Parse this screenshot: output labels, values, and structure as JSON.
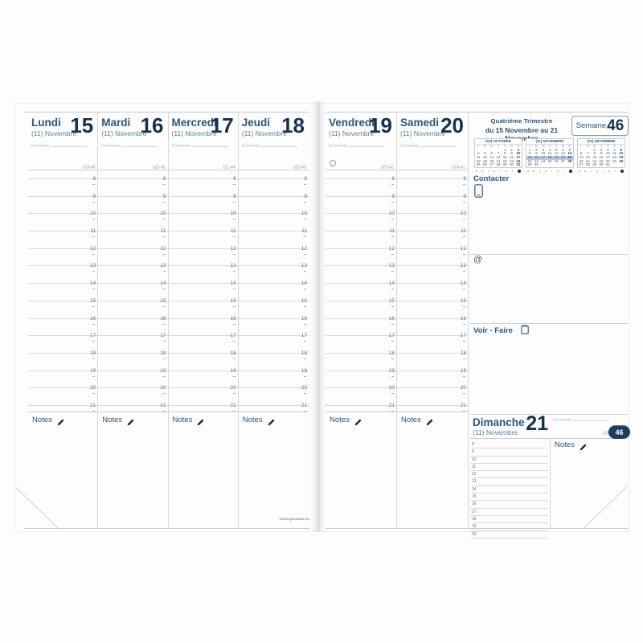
{
  "planner": {
    "website": "www.quovadis.eu",
    "week": {
      "label": "Semaine",
      "number": "46",
      "tab": "46",
      "quarter": "Quatrième Trimestre",
      "range": "du 15 Novembre au 21 Novembre"
    },
    "labels": {
      "notes": "Notes",
      "contacter": "Contacter",
      "at_symbol": "@",
      "voir_faire": "Voir - Faire",
      "dominante": "Dominante"
    },
    "days": [
      {
        "name": "Lundi",
        "date": "15",
        "month": "(11) Novembre",
        "daynum": "319-46"
      },
      {
        "name": "Mardi",
        "date": "16",
        "month": "(11) Novembre",
        "daynum": "320-45"
      },
      {
        "name": "Mercredi",
        "date": "17",
        "month": "(11) Novembre",
        "daynum": "321-44"
      },
      {
        "name": "Jeudi",
        "date": "18",
        "month": "(11) Novembre",
        "daynum": "322-43"
      },
      {
        "name": "Vendredi",
        "date": "19",
        "month": "(11) Novembre",
        "daynum": "323-42",
        "moon_phase": "full-moon"
      },
      {
        "name": "Samedi",
        "date": "20",
        "month": "(11) Novembre",
        "daynum": "324-41"
      }
    ],
    "sunday": {
      "name": "Dimanche",
      "date": "21",
      "month": "(11) Novembre",
      "daynum": "325-40"
    },
    "hours": [
      8,
      9,
      10,
      11,
      12,
      13,
      14,
      15,
      16,
      17,
      18,
      19,
      20,
      21
    ],
    "sunday_hours": [
      8,
      9,
      10,
      11,
      12,
      13,
      14,
      15,
      16,
      17,
      18,
      19,
      20
    ],
    "mini_dow": [
      "L",
      "M",
      "M",
      "J",
      "V",
      "S",
      "D"
    ],
    "mini_calendars": [
      {
        "title": "(10) OCTOBRE",
        "highlight_row": -1,
        "weeks": [
          [
            "",
            "",
            "",
            "",
            "1",
            "2",
            "3"
          ],
          [
            "4",
            "5",
            "6",
            "7",
            "8",
            "9",
            "10"
          ],
          [
            "11",
            "12",
            "13",
            "14",
            "15",
            "16",
            "17"
          ],
          [
            "18",
            "19",
            "20",
            "21",
            "22",
            "23",
            "24"
          ],
          [
            "25",
            "26",
            "27",
            "28",
            "29",
            "30",
            "31"
          ]
        ]
      },
      {
        "title": "(11) NOVEMBRE",
        "highlight_row": 2,
        "weeks": [
          [
            "1",
            "2",
            "3",
            "4",
            "5",
            "6",
            "7"
          ],
          [
            "8",
            "9",
            "10",
            "11",
            "12",
            "13",
            "14"
          ],
          [
            "15",
            "16",
            "17",
            "18",
            "19",
            "20",
            "21"
          ],
          [
            "22",
            "23",
            "24",
            "25",
            "26",
            "27",
            "28"
          ],
          [
            "29",
            "30",
            "",
            "",
            "",
            "",
            ""
          ]
        ]
      },
      {
        "title": "(12) DÉCEMBRE",
        "highlight_row": -1,
        "weeks": [
          [
            "",
            "",
            "1",
            "2",
            "3",
            "4",
            "5"
          ],
          [
            "6",
            "7",
            "8",
            "9",
            "10",
            "11",
            "12"
          ],
          [
            "13",
            "14",
            "15",
            "16",
            "17",
            "18",
            "19"
          ],
          [
            "20",
            "21",
            "22",
            "23",
            "24",
            "25",
            "26"
          ],
          [
            "27",
            "28",
            "29",
            "30",
            "31",
            "",
            ""
          ]
        ]
      }
    ],
    "colors": {
      "navy": "#14324e",
      "blue": "#2c567a",
      "highlight": "#b9c7e3",
      "tab_bg": "#1d3c5f"
    }
  }
}
